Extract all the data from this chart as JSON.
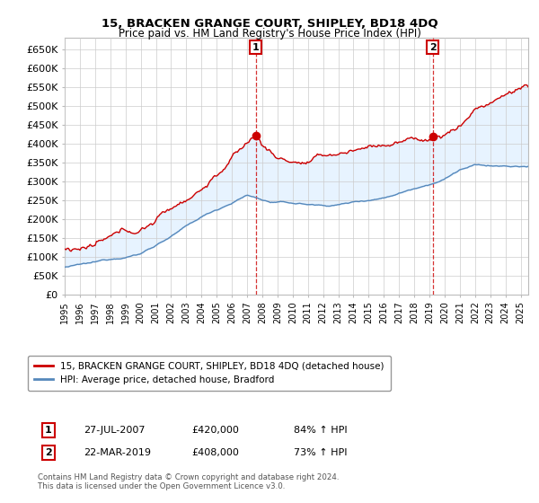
{
  "title": "15, BRACKEN GRANGE COURT, SHIPLEY, BD18 4DQ",
  "subtitle": "Price paid vs. HM Land Registry's House Price Index (HPI)",
  "ylabel_ticks": [
    "£0",
    "£50K",
    "£100K",
    "£150K",
    "£200K",
    "£250K",
    "£300K",
    "£350K",
    "£400K",
    "£450K",
    "£500K",
    "£550K",
    "£600K",
    "£650K"
  ],
  "ytick_values": [
    0,
    50000,
    100000,
    150000,
    200000,
    250000,
    300000,
    350000,
    400000,
    450000,
    500000,
    550000,
    600000,
    650000
  ],
  "ylim": [
    0,
    680000
  ],
  "sale1_date_num": 2007.57,
  "sale1_price": 420000,
  "sale2_date_num": 2019.22,
  "sale2_price": 408000,
  "legend_line1": "15, BRACKEN GRANGE COURT, SHIPLEY, BD18 4DQ (detached house)",
  "legend_line2": "HPI: Average price, detached house, Bradford",
  "footer": "Contains HM Land Registry data © Crown copyright and database right 2024.\nThis data is licensed under the Open Government Licence v3.0.",
  "price_color": "#cc0000",
  "hpi_color": "#5588bb",
  "plot_bg": "#ffffff",
  "fig_bg": "#ffffff",
  "fill_color": "#ddeeff",
  "annotation_box_color": "#cc0000",
  "grid_color": "#cccccc"
}
